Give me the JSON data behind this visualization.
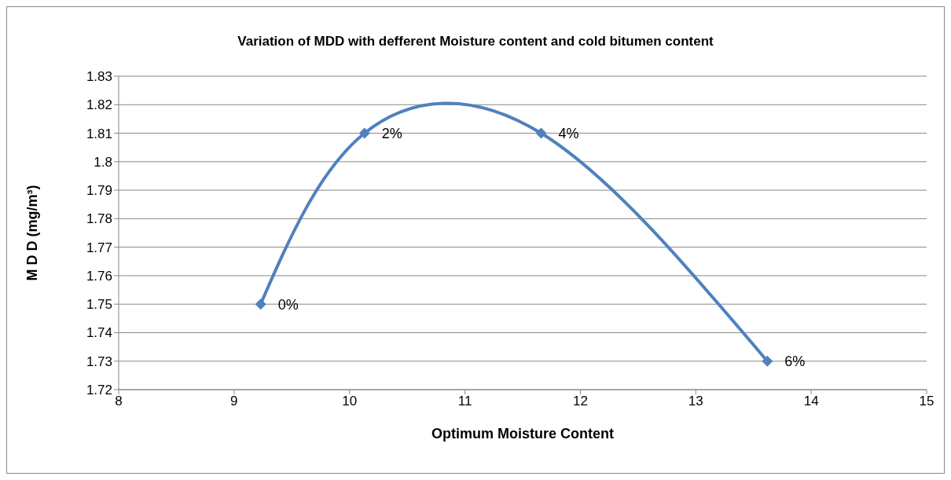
{
  "chart_data": {
    "type": "line",
    "title": "Variation of MDD with defferent Moisture content and cold bitumen content",
    "xlabel": "Optimum Moisture Content",
    "ylabel": "M D D (mg/m³)",
    "x": [
      9.23,
      10.13,
      11.66,
      13.62
    ],
    "series": [
      {
        "color": "#4f81bd",
        "values": [
          1.75,
          1.81,
          1.81,
          1.73
        ]
      }
    ],
    "annotations": [
      {
        "text": "0%",
        "x": 9.23,
        "y": 1.75
      },
      {
        "text": "2%",
        "x": 10.13,
        "y": 1.81
      },
      {
        "text": "4%",
        "x": 11.66,
        "y": 1.81
      },
      {
        "text": "6%",
        "x": 13.62,
        "y": 1.73
      }
    ],
    "xlim": [
      8,
      15
    ],
    "xticks": [
      8,
      9,
      10,
      11,
      12,
      13,
      14,
      15
    ],
    "ylim": [
      1.72,
      1.83
    ],
    "yticks": [
      1.72,
      1.73,
      1.74,
      1.75,
      1.76,
      1.77,
      1.78,
      1.79,
      1.8,
      1.81,
      1.82,
      1.83
    ],
    "grid": "y",
    "legend": false,
    "marker": "diamond",
    "line_style": "solid"
  }
}
